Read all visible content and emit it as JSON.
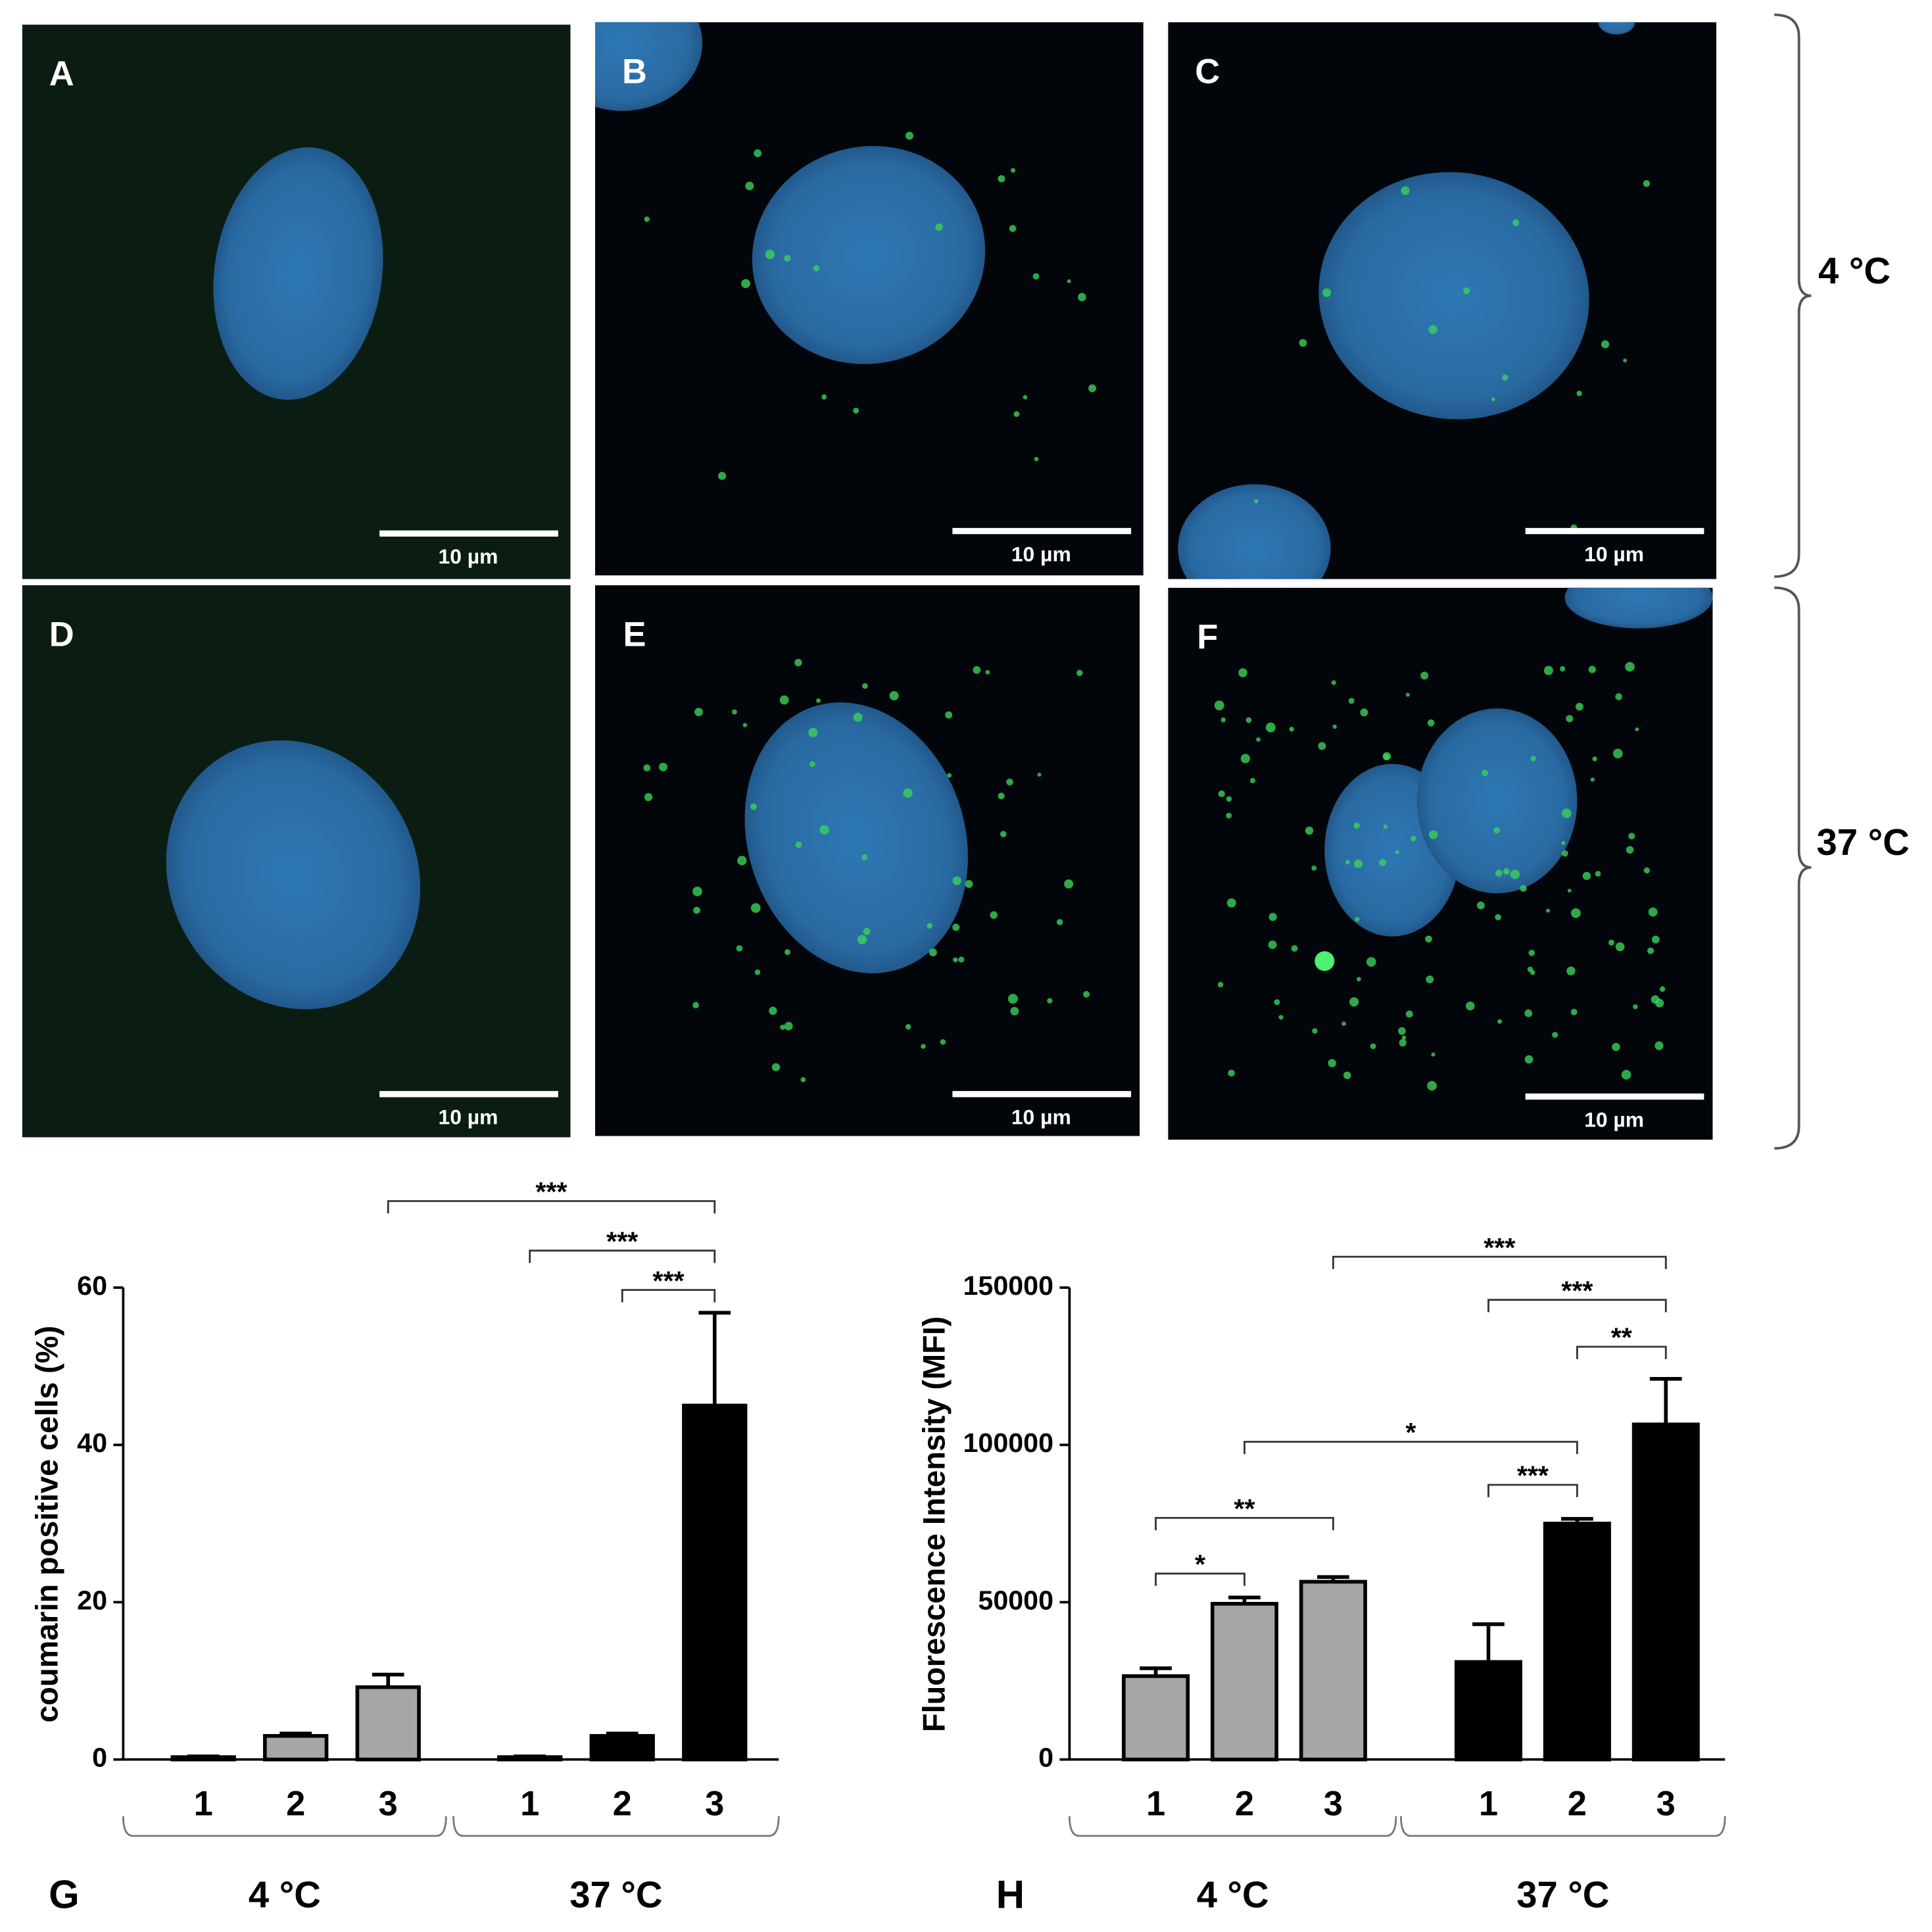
{
  "panels": [
    {
      "label": "A",
      "scale_bar": "10 µm"
    },
    {
      "label": "B",
      "scale_bar": "10 µm"
    },
    {
      "label": "C",
      "scale_bar": "10 µm"
    },
    {
      "label": "D",
      "scale_bar": "10 µm"
    },
    {
      "label": "E",
      "scale_bar": "10 µm"
    },
    {
      "label": "F",
      "scale_bar": "10 µm"
    }
  ],
  "conditions": [
    "4 °C",
    "37 °C"
  ],
  "chart_data": [
    {
      "type": "bar",
      "panel_label": "G",
      "y_label": "coumarin positive cells (%)",
      "ylim": [
        0,
        60
      ],
      "yticks": [
        0,
        20,
        40,
        60
      ],
      "groups": [
        {
          "name": "4 °C",
          "color": "#a6a6a8",
          "categories": [
            "1",
            "2",
            "3"
          ],
          "values": [
            0.3,
            3,
            9.2
          ],
          "errors": [
            0.1,
            0.3,
            1.6
          ]
        },
        {
          "name": "37 °C",
          "color": "#000000",
          "categories": [
            "1",
            "2",
            "3"
          ],
          "values": [
            0.3,
            3,
            45
          ],
          "errors": [
            0.1,
            0.3,
            11.8
          ]
        }
      ],
      "brackets": [
        {
          "from": 2,
          "to": 5,
          "y": 71,
          "label": "***"
        },
        {
          "from": 3,
          "to": 5,
          "y": 64.7,
          "label": "***"
        },
        {
          "from": 4,
          "to": 5,
          "y": 59.7,
          "label": "***"
        }
      ]
    },
    {
      "type": "bar",
      "panel_label": "H",
      "y_label": "Fluorescence Intensity (MFI)",
      "ylim": [
        0,
        150000
      ],
      "yticks": [
        0,
        50000,
        100000,
        150000
      ],
      "groups": [
        {
          "name": "4 °C",
          "color": "#a6a6a8",
          "categories": [
            "1",
            "2",
            "3"
          ],
          "values": [
            26500,
            49500,
            56500
          ],
          "errors": [
            2500,
            2000,
            1500
          ]
        },
        {
          "name": "37 °C",
          "color": "#000000",
          "categories": [
            "1",
            "2",
            "3"
          ],
          "values": [
            31000,
            75000,
            106500
          ],
          "errors": [
            12000,
            1500,
            14500
          ]
        }
      ],
      "brackets": [
        {
          "from": 2,
          "to": 5,
          "y": 159800,
          "label": "***"
        },
        {
          "from": 3,
          "to": 5,
          "y": 146100,
          "label": "***"
        },
        {
          "from": 4,
          "to": 5,
          "y": 131200,
          "label": "**"
        },
        {
          "from": 1,
          "to": 4,
          "y": 101000,
          "label": "*"
        },
        {
          "from": 3,
          "to": 4,
          "y": 87300,
          "label": "***"
        },
        {
          "from": 0,
          "to": 2,
          "y": 76800,
          "label": "**"
        },
        {
          "from": 0,
          "to": 1,
          "y": 59100,
          "label": "*"
        }
      ]
    }
  ]
}
